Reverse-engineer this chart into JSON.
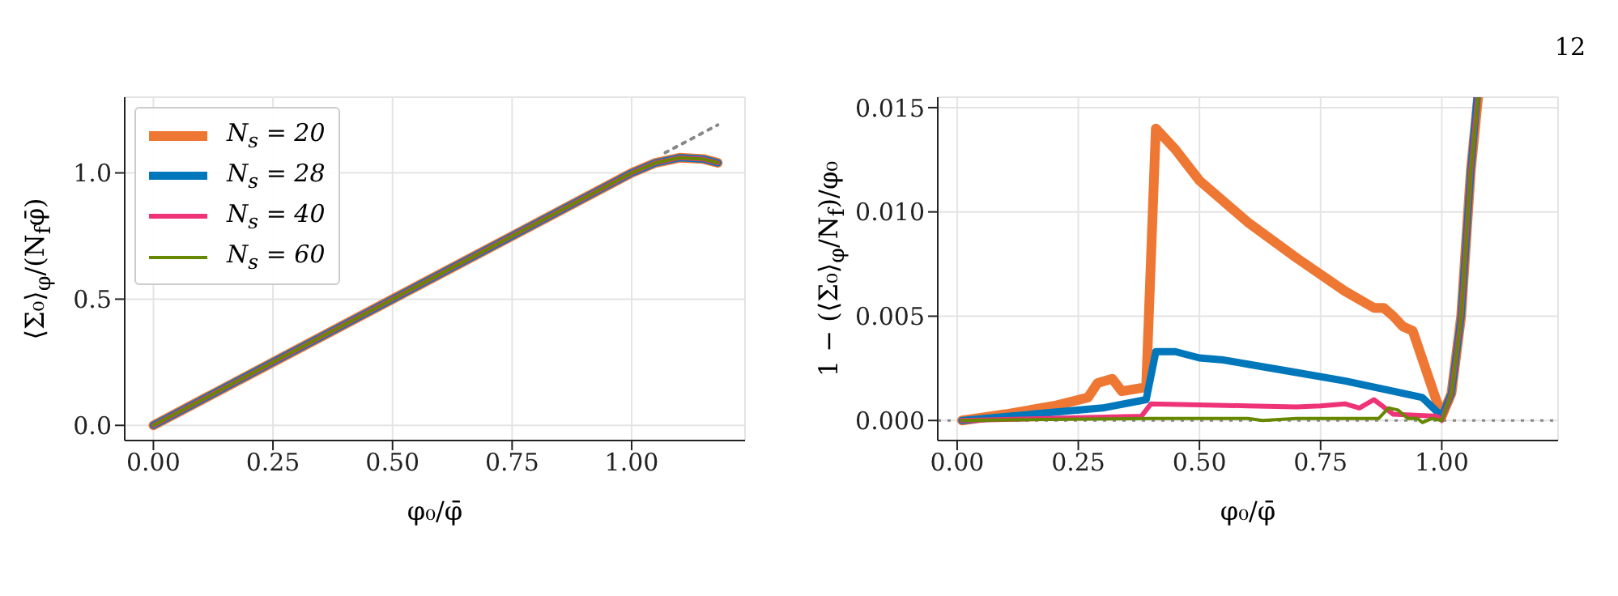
{
  "chart_data": [
    {
      "type": "line",
      "xlabel": "φ₀/φ̄",
      "ylabel": "⟨Σ₀⟩$_{φ}$/(N$_{f}$φ̄)",
      "xlim": [
        -0.06,
        1.237
      ],
      "ylim": [
        -0.06,
        1.3
      ],
      "xticks": [
        {
          "value": 0,
          "label": "0.00"
        },
        {
          "value": 0.25,
          "label": "0.25"
        },
        {
          "value": 0.5,
          "label": "0.50"
        },
        {
          "value": 0.75,
          "label": "0.75"
        },
        {
          "value": 1,
          "label": "1.00"
        }
      ],
      "yticks": [
        {
          "value": 0,
          "label": "0.0"
        },
        {
          "value": 0.5,
          "label": "0.5"
        },
        {
          "value": 1,
          "label": "1.0"
        }
      ],
      "grid": true,
      "legend": "top left",
      "series": [
        {
          "name": "N$_{s}$ = 20",
          "color": "#ee7733",
          "x": [
            0,
            0.25,
            0.5,
            0.75,
            1.0,
            1.05,
            1.1,
            1.15,
            1.18
          ],
          "values": [
            0,
            0.25,
            0.5,
            0.75,
            1.0,
            1.04,
            1.06,
            1.055,
            1.04
          ]
        },
        {
          "name": "N$_{s}$ = 28",
          "color": "#0077bb",
          "x": [
            0,
            0.25,
            0.5,
            0.75,
            1.0,
            1.05,
            1.1,
            1.15,
            1.18
          ],
          "values": [
            0,
            0.25,
            0.5,
            0.75,
            1.0,
            1.04,
            1.06,
            1.055,
            1.04
          ]
        },
        {
          "name": "N$_{s}$ = 40",
          "color": "#ee3377",
          "x": [
            0,
            0.25,
            0.5,
            0.75,
            1.0,
            1.05,
            1.1,
            1.15,
            1.18
          ],
          "values": [
            0,
            0.25,
            0.5,
            0.75,
            1.0,
            1.04,
            1.06,
            1.055,
            1.04
          ]
        },
        {
          "name": "N$_{s}$ = 60",
          "color": "#668800",
          "x": [
            0,
            0.25,
            0.5,
            0.75,
            1.0,
            1.05,
            1.1,
            1.15,
            1.18
          ],
          "values": [
            0,
            0.25,
            0.5,
            0.75,
            1.0,
            1.04,
            1.06,
            1.055,
            1.04
          ]
        },
        {
          "color": "#888888",
          "line_style": "dotted",
          "x": [
            1.07,
            1.18
          ],
          "values": [
            1.08,
            1.19
          ]
        }
      ]
    },
    {
      "type": "line",
      "xlabel": "φ₀/φ̄",
      "ylabel": "1 − (⟨Σ₀⟩$_{φ}$/N$_{f}$)/φ₀",
      "xlim": [
        -0.04,
        1.24
      ],
      "ylim": [
        -0.00096,
        0.0155
      ],
      "xticks": [
        {
          "value": 0,
          "label": "0.00"
        },
        {
          "value": 0.25,
          "label": "0.25"
        },
        {
          "value": 0.5,
          "label": "0.50"
        },
        {
          "value": 0.75,
          "label": "0.75"
        },
        {
          "value": 1,
          "label": "1.00"
        }
      ],
      "yticks": [
        {
          "value": 0,
          "label": "0.000"
        },
        {
          "value": 0.005,
          "label": "0.005"
        },
        {
          "value": 0.01,
          "label": "0.010"
        },
        {
          "value": 0.015,
          "label": "0.015"
        }
      ],
      "grid": true,
      "ref_lines": [
        {
          "axis": "y",
          "value": 0,
          "color": "#888888",
          "line_style": "dotted"
        }
      ],
      "annotations": [
        "12"
      ],
      "series": [
        {
          "color": "#ee7733",
          "x": [
            0.01,
            0.1,
            0.2,
            0.27,
            0.29,
            0.32,
            0.34,
            0.39,
            0.41,
            0.45,
            0.5,
            0.6,
            0.7,
            0.8,
            0.86,
            0.88,
            0.9,
            0.92,
            0.94,
            1.0,
            1.02,
            1.04,
            1.06,
            1.075
          ],
          "values": [
            0,
            0.0003,
            0.0007,
            0.0011,
            0.0018,
            0.002,
            0.0014,
            0.0016,
            0.014,
            0.013,
            0.0115,
            0.0095,
            0.0078,
            0.0062,
            0.0054,
            0.0054,
            0.005,
            0.0045,
            0.0043,
            0.0002,
            0.0013,
            0.005,
            0.012,
            0.0155
          ]
        },
        {
          "color": "#0077bb",
          "x": [
            0.01,
            0.2,
            0.3,
            0.39,
            0.41,
            0.45,
            0.5,
            0.55,
            0.6,
            0.7,
            0.8,
            0.9,
            0.96,
            1.0,
            1.02,
            1.04,
            1.06,
            1.073
          ],
          "values": [
            0,
            0.0004,
            0.0006,
            0.001,
            0.0033,
            0.0033,
            0.003,
            0.0029,
            0.0027,
            0.0023,
            0.0019,
            0.0014,
            0.0011,
            0.0002,
            0.0013,
            0.005,
            0.012,
            0.0155
          ]
        },
        {
          "color": "#ee3377",
          "x": [
            0.01,
            0.38,
            0.4,
            0.5,
            0.6,
            0.7,
            0.75,
            0.8,
            0.83,
            0.86,
            0.9,
            0.99,
            1.0,
            1.02,
            1.04,
            1.06,
            1.074
          ],
          "values": [
            0,
            0.0002,
            0.0008,
            0.00075,
            0.0007,
            0.00065,
            0.0007,
            0.0008,
            0.0006,
            0.001,
            0.0003,
            0.0002,
            0,
            0.0013,
            0.005,
            0.012,
            0.0155
          ]
        },
        {
          "color": "#668800",
          "x": [
            0.01,
            0.4,
            0.6,
            0.63,
            0.7,
            0.87,
            0.89,
            0.91,
            0.93,
            0.95,
            0.96,
            0.98,
            1.0,
            1.02,
            1.04,
            1.06,
            1.075
          ],
          "values": [
            0,
            0.0001,
            0.0001,
            0,
            0.0001,
            0.0001,
            0.0006,
            0.0005,
            0.0001,
            0.0001,
            -0.0001,
            0.0001,
            0,
            0.0013,
            0.005,
            0.012,
            0.0155
          ]
        }
      ]
    }
  ]
}
